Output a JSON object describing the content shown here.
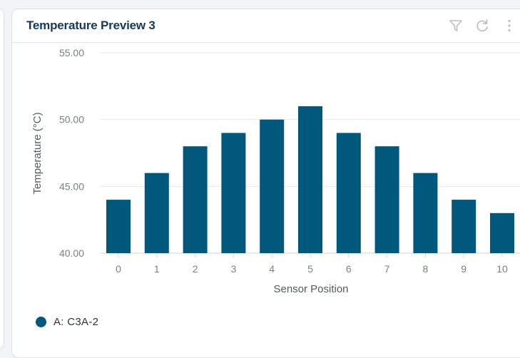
{
  "card": {
    "title": "Temperature Preview 3"
  },
  "icons": {
    "filter": "filter-icon",
    "refresh": "refresh-icon",
    "more": "more-vertical-icon"
  },
  "colors": {
    "bar": "#00587c",
    "title": "#133a5e",
    "grid": "#e6e9ec",
    "tick_text": "#7a7f85",
    "axis_label": "#555a60"
  },
  "chart_data": {
    "type": "bar",
    "title": "Temperature Preview 3",
    "xlabel": "Sensor Position",
    "ylabel": "Temperature (°C)",
    "categories": [
      "0",
      "1",
      "2",
      "3",
      "4",
      "5",
      "6",
      "7",
      "8",
      "9",
      "10"
    ],
    "series": [
      {
        "name": "A: C3A-2",
        "values": [
          44,
          46,
          48,
          49,
          50,
          51,
          49,
          48,
          46,
          44,
          43
        ]
      }
    ],
    "ylim": [
      40,
      55
    ],
    "yticks": [
      "40.00",
      "45.00",
      "50.00",
      "55.00"
    ],
    "grid": true,
    "legend": "bottom-left"
  }
}
